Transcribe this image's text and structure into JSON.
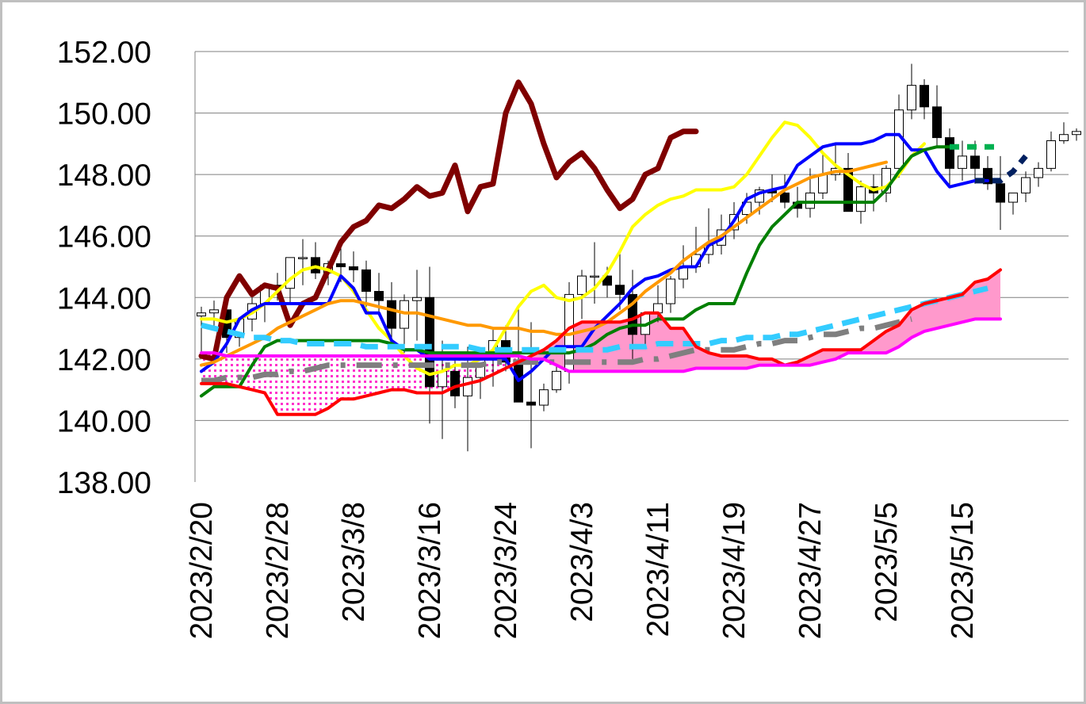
{
  "chart_data": {
    "type": "line",
    "title": "",
    "xlabel": "",
    "ylabel": "",
    "ylim": [
      138,
      152
    ],
    "yticks": [
      "138.00",
      "140.00",
      "142.00",
      "144.00",
      "146.00",
      "148.00",
      "150.00",
      "152.00"
    ],
    "y_tick_values": [
      138,
      140,
      142,
      144,
      146,
      148,
      150,
      152
    ],
    "xticks": [
      "2023/2/20",
      "2023/2/28",
      "2023/3/8",
      "2023/3/16",
      "2023/3/24",
      "2023/4/3",
      "2023/4/11",
      "2023/4/19",
      "2023/4/27",
      "2023/5/5",
      "2023/5/15"
    ],
    "x_tick_index": [
      0,
      6,
      12,
      18,
      24,
      30,
      36,
      42,
      48,
      54,
      60
    ],
    "grid": "horizontal",
    "n_slots": 70,
    "candles": {
      "open": [
        143.4,
        143.5,
        143.6,
        142.7,
        143.3,
        143.8,
        144.4,
        144.3,
        145.3,
        145.3,
        144.8,
        145.1,
        145.0,
        144.9,
        144.2,
        143.9,
        143.0,
        143.9,
        144.0,
        141.1,
        141.6,
        140.8,
        141.4,
        142.0,
        142.6,
        141.9,
        140.6,
        140.5,
        141.0,
        141.6,
        144.1,
        144.7,
        144.7,
        144.4,
        144.1,
        142.8,
        143.5,
        143.8,
        144.6,
        145.0,
        145.4,
        145.7,
        146.2,
        146.7,
        147.1,
        147.5,
        147.4,
        147.1,
        146.9,
        147.4,
        148.0,
        148.2,
        146.8,
        147.6,
        147.4,
        148.2,
        150.1,
        150.9,
        150.2,
        149.2,
        148.2,
        148.6,
        148.2,
        147.7,
        147.1,
        147.4,
        147.9,
        148.2,
        149.1,
        149.3
      ],
      "high": [
        143.7,
        143.9,
        144.0,
        143.3,
        144.0,
        144.3,
        144.8,
        145.0,
        145.9,
        145.8,
        145.2,
        145.6,
        145.5,
        145.2,
        144.8,
        144.5,
        144.1,
        144.9,
        145.0,
        142.6,
        142.2,
        142.4,
        142.3,
        143.0,
        143.1,
        143.7,
        143.2,
        141.2,
        141.8,
        144.5,
        144.9,
        145.8,
        145.0,
        145.5,
        144.9,
        143.5,
        144.4,
        144.7,
        145.7,
        146.3,
        146.9,
        146.7,
        147.1,
        147.4,
        147.6,
        148.0,
        148.0,
        147.6,
        148.2,
        148.7,
        149.0,
        148.7,
        147.8,
        148.0,
        148.3,
        150.6,
        151.6,
        151.1,
        150.9,
        149.5,
        149.1,
        149.1,
        148.6,
        148.6,
        147.4,
        148.1,
        148.4,
        149.4,
        149.7,
        149.5
      ],
      "low": [
        142.1,
        143.0,
        142.2,
        142.4,
        142.9,
        143.2,
        143.9,
        143.8,
        144.4,
        144.6,
        144.4,
        144.5,
        144.5,
        143.7,
        143.5,
        142.6,
        142.2,
        142.6,
        139.9,
        139.4,
        140.4,
        139.0,
        140.7,
        141.1,
        141.6,
        141.3,
        139.1,
        140.3,
        140.9,
        141.2,
        143.3,
        143.8,
        144.0,
        143.6,
        142.0,
        142.4,
        143.2,
        143.5,
        144.3,
        144.8,
        145.1,
        145.4,
        145.9,
        146.4,
        146.7,
        147.1,
        146.9,
        146.6,
        146.6,
        147.2,
        147.8,
        147.3,
        146.4,
        146.8,
        147.1,
        147.9,
        149.8,
        149.8,
        148.9,
        147.6,
        147.8,
        147.7,
        147.5,
        146.2,
        146.7,
        147.1,
        147.6,
        148.1,
        149.0,
        149.1
      ],
      "close": [
        143.5,
        143.6,
        142.7,
        143.3,
        143.8,
        144.4,
        144.3,
        145.3,
        145.3,
        144.8,
        145.1,
        145.0,
        144.9,
        144.2,
        143.9,
        143.0,
        143.9,
        144.0,
        141.1,
        141.6,
        140.8,
        141.4,
        142.0,
        142.6,
        141.9,
        140.6,
        140.5,
        141.0,
        141.6,
        144.1,
        144.7,
        144.7,
        144.4,
        144.1,
        142.8,
        143.5,
        143.8,
        144.6,
        145.0,
        145.4,
        145.7,
        146.2,
        146.7,
        147.1,
        147.5,
        147.4,
        147.1,
        146.9,
        147.4,
        148.0,
        148.2,
        146.8,
        147.6,
        147.4,
        148.2,
        150.1,
        150.9,
        150.2,
        149.2,
        148.2,
        148.6,
        148.2,
        147.7,
        147.1,
        147.4,
        147.9,
        148.2,
        149.1,
        149.3,
        149.4
      ]
    },
    "series": [
      {
        "color": "#7f0000",
        "width": 7,
        "dash": "",
        "values": [
          142.1,
          142.0,
          144.0,
          144.7,
          144.1,
          144.4,
          144.3,
          143.1,
          143.8,
          144.0,
          144.9,
          145.8,
          146.3,
          146.5,
          147.0,
          146.9,
          147.2,
          147.6,
          147.3,
          147.4,
          148.3,
          146.8,
          147.6,
          147.7,
          150.0,
          151.0,
          150.3,
          149.0,
          147.9,
          148.4,
          148.7,
          148.2,
          147.5,
          146.9,
          147.2,
          148.0,
          148.2,
          149.2,
          149.4,
          149.4
        ]
      },
      {
        "color": "#ffff00",
        "width": 4,
        "dash": "",
        "values": [
          143.3,
          143.3,
          143.2,
          143.3,
          143.5,
          143.8,
          144.2,
          144.6,
          144.9,
          145.0,
          144.9,
          144.7,
          144.2,
          143.6,
          143.0,
          142.6,
          142.1,
          141.7,
          141.5,
          141.6,
          141.8,
          141.8,
          142.0,
          142.3,
          143.0,
          143.7,
          144.2,
          144.4,
          144.0,
          143.9,
          144.0,
          144.3,
          144.8,
          145.5,
          146.3,
          146.7,
          147.0,
          147.2,
          147.3,
          147.5,
          147.5,
          147.5,
          147.6,
          148.0,
          148.6,
          149.2,
          149.7,
          149.6,
          149.2,
          148.7,
          148.3,
          148.0,
          147.7,
          147.5,
          147.6,
          148.0,
          148.6,
          149.0
        ]
      },
      {
        "color": "#0000ff",
        "width": 4,
        "dash": "",
        "values": [
          141.6,
          141.9,
          142.5,
          143.3,
          143.6,
          143.8,
          143.8,
          143.8,
          143.8,
          143.8,
          143.8,
          144.7,
          144.3,
          143.5,
          143.5,
          142.6,
          142.3,
          142.3,
          142.0,
          142.0,
          142.0,
          142.0,
          142.0,
          142.0,
          142.0,
          141.3,
          141.6,
          142.0,
          142.4,
          142.4,
          142.4,
          143.0,
          143.4,
          143.8,
          144.3,
          144.6,
          144.7,
          144.9,
          145.0,
          145.0,
          145.7,
          145.9,
          146.5,
          147.2,
          147.4,
          147.5,
          147.6,
          148.3,
          148.6,
          148.9,
          149.0,
          149.0,
          149.0,
          149.1,
          149.3,
          149.3,
          148.8,
          148.8,
          148.1,
          147.6,
          147.7,
          147.8,
          147.8
        ]
      },
      {
        "color": "#ff9900",
        "width": 4,
        "dash": "",
        "values": [
          141.8,
          141.9,
          142.1,
          142.3,
          142.5,
          142.7,
          143.0,
          143.2,
          143.4,
          143.6,
          143.8,
          143.9,
          143.9,
          143.8,
          143.7,
          143.6,
          143.5,
          143.5,
          143.4,
          143.3,
          143.2,
          143.1,
          143.1,
          143.0,
          143.0,
          143.0,
          142.9,
          142.9,
          142.8,
          142.8,
          142.9,
          143.0,
          143.2,
          143.5,
          143.8,
          144.2,
          144.5,
          144.8,
          145.2,
          145.5,
          145.8,
          146.0,
          146.3,
          146.6,
          146.9,
          147.2,
          147.5,
          147.7,
          147.9,
          148.0,
          148.1,
          148.1,
          148.2,
          148.3,
          148.4
        ]
      },
      {
        "color": "#007f00",
        "width": 4,
        "dash": "",
        "values": [
          140.8,
          141.1,
          141.1,
          141.1,
          141.8,
          142.4,
          142.6,
          142.6,
          142.6,
          142.6,
          142.6,
          142.6,
          142.6,
          142.6,
          142.6,
          142.5,
          142.3,
          142.3,
          142.2,
          142.2,
          142.2,
          142.2,
          142.2,
          142.2,
          142.2,
          142.2,
          142.2,
          142.2,
          142.2,
          142.2,
          142.3,
          142.5,
          142.8,
          143.0,
          143.1,
          143.1,
          143.3,
          143.3,
          143.3,
          143.6,
          143.8,
          143.8,
          143.8,
          144.8,
          145.7,
          146.3,
          146.7,
          147.1,
          147.1,
          147.1,
          147.1,
          147.1,
          147.1,
          147.1,
          147.5,
          148.1,
          148.6,
          148.8,
          148.9,
          148.9
        ]
      },
      {
        "color": "#00b050",
        "width": 7,
        "dash": "12,10",
        "values": [
          null,
          null,
          null,
          null,
          null,
          null,
          null,
          null,
          null,
          null,
          null,
          null,
          null,
          null,
          null,
          null,
          null,
          null,
          null,
          null,
          null,
          null,
          null,
          null,
          null,
          null,
          null,
          null,
          null,
          null,
          null,
          null,
          null,
          null,
          null,
          null,
          null,
          null,
          null,
          null,
          null,
          null,
          null,
          null,
          null,
          null,
          null,
          null,
          null,
          null,
          null,
          null,
          null,
          null,
          null,
          null,
          null,
          null,
          null,
          148.9,
          148.9,
          148.9,
          148.9,
          148.9
        ]
      },
      {
        "color": "#002060",
        "width": 7,
        "dash": "12,10",
        "values": [
          null,
          null,
          null,
          null,
          null,
          null,
          null,
          null,
          null,
          null,
          null,
          null,
          null,
          null,
          null,
          null,
          null,
          null,
          null,
          null,
          null,
          null,
          null,
          null,
          null,
          null,
          null,
          null,
          null,
          null,
          null,
          null,
          null,
          null,
          null,
          null,
          null,
          null,
          null,
          null,
          null,
          null,
          null,
          null,
          null,
          null,
          null,
          null,
          null,
          null,
          null,
          null,
          null,
          null,
          null,
          null,
          null,
          null,
          null,
          null,
          null,
          147.8,
          147.8,
          147.8,
          148.1,
          148.6
        ]
      },
      {
        "color": "#33ccff",
        "width": 7,
        "dash": "22,12",
        "values": [
          143.1,
          143.0,
          142.9,
          142.8,
          142.7,
          142.7,
          142.6,
          142.6,
          142.5,
          142.5,
          142.5,
          142.5,
          142.5,
          142.4,
          142.4,
          142.4,
          142.4,
          142.4,
          142.4,
          142.4,
          142.4,
          142.4,
          142.3,
          142.3,
          142.3,
          142.3,
          142.3,
          142.3,
          142.3,
          142.3,
          142.3,
          142.3,
          142.3,
          142.4,
          142.4,
          142.4,
          142.5,
          142.5,
          142.5,
          142.5,
          142.5,
          142.6,
          142.6,
          142.7,
          142.7,
          142.7,
          142.8,
          142.8,
          142.9,
          143.0,
          143.1,
          143.2,
          143.3,
          143.4,
          143.5,
          143.6,
          143.7,
          143.8,
          143.9,
          144.0,
          144.1,
          144.2,
          144.3
        ]
      },
      {
        "color": "#7f7f7f",
        "width": 7,
        "dash": "32,14,6,14",
        "values": [
          141.3,
          141.3,
          141.4,
          141.4,
          141.4,
          141.5,
          141.5,
          141.6,
          141.6,
          141.7,
          141.8,
          141.8,
          141.8,
          141.8,
          141.8,
          141.8,
          141.8,
          141.8,
          141.8,
          141.8,
          141.8,
          141.8,
          141.8,
          141.9,
          141.9,
          141.9,
          141.9,
          141.9,
          141.9,
          141.9,
          141.9,
          141.9,
          141.9,
          141.9,
          141.9,
          142.0,
          142.0,
          142.1,
          142.2,
          142.3,
          142.3,
          142.3,
          142.3,
          142.4,
          142.5,
          142.5,
          142.6,
          142.6,
          142.7,
          142.8,
          142.8,
          142.9,
          143.0,
          143.0,
          143.1,
          143.2,
          143.3
        ]
      },
      {
        "color": "#ff0000",
        "width": 4,
        "dash": "",
        "values": [
          141.2,
          141.2,
          141.2,
          141.1,
          141.0,
          140.9,
          140.2,
          140.2,
          140.2,
          140.2,
          140.4,
          140.7,
          140.7,
          140.8,
          140.9,
          141.0,
          141.0,
          140.9,
          140.9,
          140.9,
          141.1,
          141.2,
          141.3,
          141.5,
          141.7,
          141.9,
          142.1,
          142.3,
          142.6,
          143.0,
          143.2,
          143.2,
          143.2,
          143.2,
          143.3,
          143.5,
          143.5,
          143.0,
          143.0,
          142.4,
          142.2,
          142.1,
          142.1,
          142.1,
          142.0,
          142.0,
          141.8,
          141.9,
          142.1,
          142.3,
          142.3,
          142.3,
          142.3,
          142.6,
          142.9,
          143.1,
          143.6,
          143.8,
          143.9,
          144.0,
          144.1,
          144.5,
          144.6,
          144.9
        ]
      },
      {
        "color": "#ff00ff",
        "width": 4,
        "dash": "",
        "values": [
          142.2,
          142.2,
          142.1,
          142.1,
          142.1,
          142.1,
          142.1,
          142.1,
          142.1,
          142.1,
          142.1,
          142.1,
          142.1,
          142.1,
          142.1,
          142.1,
          142.1,
          142.1,
          142.1,
          142.1,
          142.1,
          142.1,
          142.1,
          142.1,
          142.1,
          142.1,
          142.0,
          142.0,
          141.8,
          141.6,
          141.6,
          141.6,
          141.6,
          141.6,
          141.6,
          141.6,
          141.6,
          141.6,
          141.6,
          141.7,
          141.7,
          141.7,
          141.7,
          141.7,
          141.8,
          141.8,
          141.8,
          141.8,
          141.8,
          141.9,
          142.0,
          142.2,
          142.2,
          142.2,
          142.2,
          142.4,
          142.7,
          142.9,
          143.0,
          143.1,
          143.2,
          143.3,
          143.3,
          143.3
        ]
      }
    ]
  }
}
